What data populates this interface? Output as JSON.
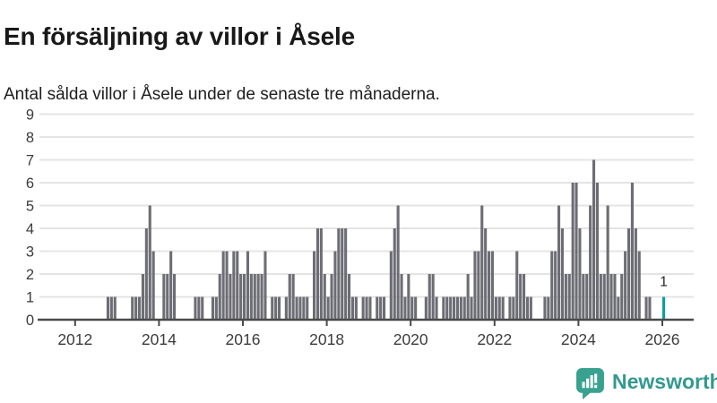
{
  "header": {
    "title": "En försäljning av villor i Åsele",
    "subtitle": "Antal sålda villor i Åsele under de senaste tre månaderna."
  },
  "branding": {
    "logo_text": "Newsworthy",
    "icon_color": "#38a18f",
    "text_color": "#33998f"
  },
  "colors": {
    "bar": "#6d6d75",
    "highlight": "#0b9f9e",
    "grid": "#e4e4e4",
    "axis": "#4a4a4a",
    "tick_text": "#3c3c3c",
    "annotation_text": "#222222"
  },
  "chart_data": {
    "type": "bar",
    "title": "En försäljning av villor i Åsele",
    "subtitle": "Antal sålda villor i Åsele under de senaste tre månaderna.",
    "xlabel": "",
    "ylabel": "",
    "grid": true,
    "legend": false,
    "x_tick_years": [
      2012,
      2014,
      2016,
      2018,
      2020,
      2022,
      2024,
      2026
    ],
    "y_ticks": [
      0,
      1,
      2,
      3,
      4,
      5,
      6,
      7,
      8,
      9
    ],
    "ylim": [
      0,
      9
    ],
    "start": "2011-01",
    "end": "2026-01",
    "monthly_values_by_year": {
      "2011": [
        0,
        0,
        0,
        0,
        0,
        0,
        0,
        0,
        0,
        0,
        0,
        0
      ],
      "2012": [
        0,
        0,
        0,
        0,
        0,
        0,
        0,
        0,
        0,
        1,
        1,
        1
      ],
      "2013": [
        0,
        0,
        0,
        0,
        1,
        1,
        1,
        2,
        4,
        5,
        3,
        0
      ],
      "2014": [
        0,
        2,
        2,
        3,
        2,
        0,
        0,
        0,
        0,
        0,
        1,
        1
      ],
      "2015": [
        1,
        0,
        0,
        1,
        1,
        2,
        3,
        3,
        2,
        3,
        3,
        2
      ],
      "2016": [
        2,
        3,
        2,
        2,
        2,
        2,
        3,
        0,
        1,
        1,
        1,
        0
      ],
      "2017": [
        1,
        2,
        2,
        1,
        1,
        1,
        1,
        0,
        3,
        4,
        4,
        2
      ],
      "2018": [
        1,
        2,
        3,
        4,
        4,
        4,
        2,
        1,
        1,
        0,
        1,
        1
      ],
      "2019": [
        1,
        0,
        1,
        1,
        1,
        0,
        3,
        4,
        5,
        2,
        1,
        2
      ],
      "2020": [
        1,
        1,
        0,
        0,
        1,
        2,
        2,
        1,
        0,
        1,
        1,
        1
      ],
      "2021": [
        1,
        1,
        1,
        1,
        2,
        1,
        3,
        3,
        5,
        4,
        3,
        3
      ],
      "2022": [
        1,
        1,
        1,
        0,
        1,
        1,
        3,
        2,
        2,
        1,
        1,
        0
      ],
      "2023": [
        0,
        0,
        1,
        1,
        3,
        3,
        5,
        4,
        2,
        2,
        6,
        6
      ],
      "2024": [
        4,
        2,
        2,
        5,
        7,
        6,
        2,
        2,
        5,
        2,
        2,
        1
      ],
      "2025": [
        2,
        3,
        4,
        6,
        4,
        3,
        0,
        1,
        1,
        0,
        0,
        0
      ],
      "2026": [
        1
      ]
    },
    "highlight": {
      "month": "2026-01",
      "value": 1,
      "label": "1"
    }
  }
}
